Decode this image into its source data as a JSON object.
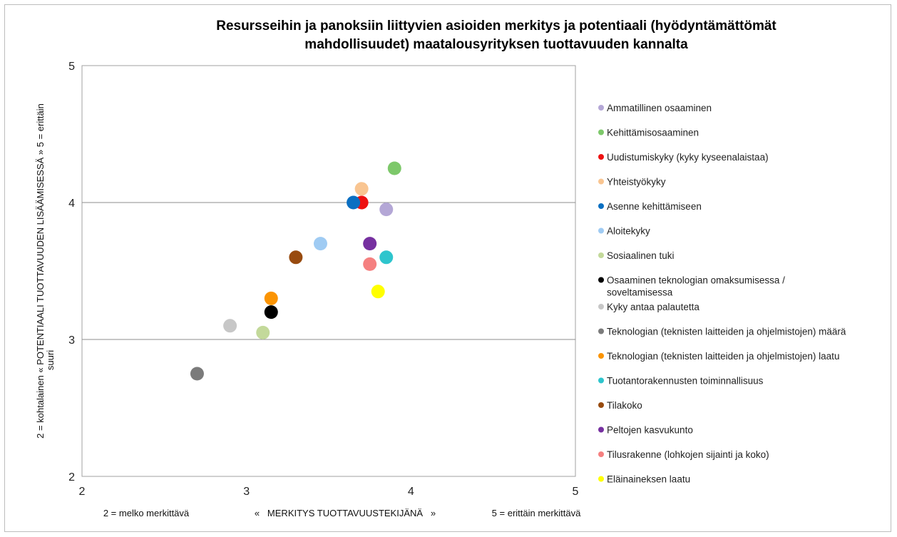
{
  "chart_data": {
    "type": "scatter",
    "title": [
      "Resursseihin ja panoksiin liittyvien asioiden merkitys ja potentiaali (hyödyntämättömät",
      "mahdollisuudet) maatalousyrityksen tuottavuuden kannalta"
    ],
    "xlabel": {
      "left": "2 = melko merkittävä",
      "center": "«   MERKITYS TUOTTAVUUSTEKIJÄNÄ   »",
      "right": "5 = erittäin merkittävä"
    },
    "ylabel": [
      "2 = kohtalainen « POTENTIAALI TUOTTAVUUDEN LISÄÄMISESSÄ » 5 = erittäin",
      "suuri"
    ],
    "xlim": [
      2,
      5
    ],
    "ylim": [
      2,
      5
    ],
    "xticks": [
      "2",
      "3",
      "4",
      "5"
    ],
    "yticks": [
      "2",
      "3",
      "4",
      "5"
    ],
    "grid": "horizontal major",
    "legend_position": "right",
    "series": [
      {
        "name": "Ammatillinen osaaminen",
        "color": "#b4a7d6",
        "x": 3.85,
        "y": 3.95
      },
      {
        "name": "Kehittämisosaaminen",
        "color": "#7dc86a",
        "x": 3.9,
        "y": 4.25
      },
      {
        "name": "Uudistumiskyky (kyky kyseenalaistaa)",
        "color": "#ee1111",
        "x": 3.7,
        "y": 4.0
      },
      {
        "name": "Yhteistyökyky",
        "color": "#f9c591",
        "x": 3.7,
        "y": 4.1
      },
      {
        "name": "Asenne kehittämiseen",
        "color": "#0a6fc2",
        "x": 3.65,
        "y": 4.0
      },
      {
        "name": "Aloitekyky",
        "color": "#9fcbf3",
        "x": 3.45,
        "y": 3.7
      },
      {
        "name": "Sosiaalinen tuki",
        "color": "#c3d99a",
        "x": 3.1,
        "y": 3.05
      },
      {
        "name": "Osaaminen teknologian omaksumisessa / soveltamisessa",
        "color": "#000000",
        "x": 3.15,
        "y": 3.2
      },
      {
        "name": "Kyky antaa palautetta",
        "color": "#c7c7c7",
        "x": 2.9,
        "y": 3.1
      },
      {
        "name": "Teknologian (teknisten laitteiden ja ohjelmistojen) määrä",
        "color": "#7b7b7b",
        "x": 2.7,
        "y": 2.75
      },
      {
        "name": "Teknologian (teknisten laitteiden ja ohjelmistojen) laatu",
        "color": "#fb9403",
        "x": 3.15,
        "y": 3.3
      },
      {
        "name": "Tuotantorakennusten toiminnallisuus",
        "color": "#2ec5cd",
        "x": 3.85,
        "y": 3.6
      },
      {
        "name": "Tilakoko",
        "color": "#984b0f",
        "x": 3.3,
        "y": 3.6
      },
      {
        "name": "Peltojen kasvukunto",
        "color": "#7630a0",
        "x": 3.75,
        "y": 3.7
      },
      {
        "name": "Tilusrakenne (lohkojen sijainti ja koko)",
        "color": "#f58080",
        "x": 3.75,
        "y": 3.55
      },
      {
        "name": "Eläinaineksen laatu",
        "color": "#ffff00",
        "x": 3.8,
        "y": 3.35
      }
    ]
  }
}
